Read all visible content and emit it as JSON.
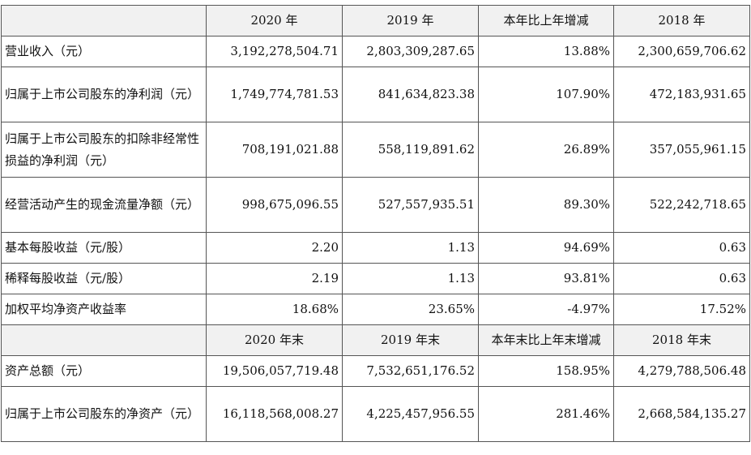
{
  "header1": [
    "2020 年",
    "2019 年",
    "本年比上年增减",
    "2018 年"
  ],
  "rows1": [
    {
      "label": "营业收入（元）",
      "values": [
        "3,192,278,504.71",
        "2,803,309,287.65",
        "13.88%",
        "2,300,659,706.62"
      ]
    },
    {
      "label": "归属于上市公司股东的净利润（元）",
      "values": [
        "1,749,774,781.53",
        "841,634,823.38",
        "107.90%",
        "472,183,931.65"
      ]
    },
    {
      "label": "归属于上市公司股东的扣除非经常性损益的净利润（元）",
      "values": [
        "708,191,021.88",
        "558,119,891.62",
        "26.89%",
        "357,055,961.15"
      ]
    },
    {
      "label": "经营活动产生的现金流量净额（元）",
      "values": [
        "998,675,096.55",
        "527,557,935.51",
        "89.30%",
        "522,242,718.65"
      ]
    },
    {
      "label": "基本每股收益（元/股）",
      "values": [
        "2.20",
        "1.13",
        "94.69%",
        "0.63"
      ]
    },
    {
      "label": "稀释每股收益（元/股）",
      "values": [
        "2.19",
        "1.13",
        "93.81%",
        "0.63"
      ]
    },
    {
      "label": "加权平均净资产收益率",
      "values": [
        "18.68%",
        "23.65%",
        "-4.97%",
        "17.52%"
      ]
    }
  ],
  "header2": [
    "2020 年末",
    "2019 年末",
    "本年末比上年末增减",
    "2018 年末"
  ],
  "rows2": [
    {
      "label": "资产总额（元）",
      "values": [
        "19,506,057,719.48",
        "7,532,651,176.52",
        "158.95%",
        "4,279,788,506.48"
      ]
    },
    {
      "label": "归属于上市公司股东的净资产（元）",
      "values": [
        "16,118,568,008.27",
        "4,225,457,956.55",
        "281.46%",
        "2,668,584,135.27"
      ]
    }
  ]
}
